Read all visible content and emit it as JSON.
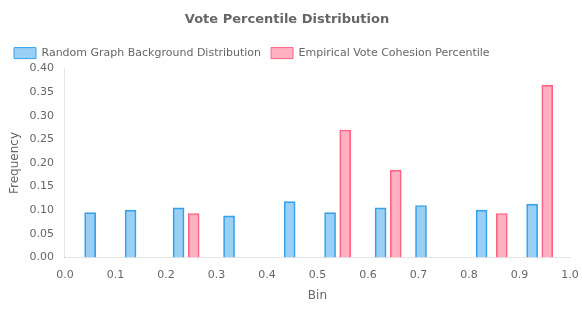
{
  "chart_data": {
    "type": "bar",
    "title": "Vote Percentile Distribution",
    "x_label": "Bin",
    "y_label": "Frequency",
    "xlim": [
      0,
      1.0
    ],
    "ylim": [
      0,
      0.4
    ],
    "xticks": [
      {
        "value": 0,
        "label": "0.0"
      },
      0.1,
      0.2,
      0.3,
      0.4,
      0.5,
      0.6,
      0.7,
      0.8,
      0.9,
      {
        "value": 1.0,
        "label": "1.0"
      }
    ],
    "yticks": [
      {
        "value": 0,
        "label": "0.00"
      },
      0.05,
      {
        "value": 0.1,
        "label": "0.10"
      },
      0.15,
      {
        "value": 0.2,
        "label": "0.20"
      },
      0.25,
      {
        "value": 0.3,
        "label": "0.30"
      },
      0.35,
      {
        "value": 0.4,
        "label": "0.40"
      }
    ],
    "grid": false,
    "legend": "upper left",
    "series": [
      {
        "name": "Random Graph Background Distribution",
        "x": [
          0.05,
          0.13,
          0.225,
          0.325,
          0.445,
          0.525,
          0.625,
          0.705,
          0.825,
          0.925
        ],
        "values": [
          0.095,
          0.1,
          0.105,
          0.088,
          0.118,
          0.095,
          0.105,
          0.11,
          0.1,
          0.113
        ]
      },
      {
        "name": "Empirical Vote Cohesion Percentile",
        "x": [
          0.255,
          0.555,
          0.655,
          0.865,
          0.955
        ],
        "values": [
          0.093,
          0.27,
          0.185,
          0.093,
          0.365
        ]
      }
    ]
  }
}
